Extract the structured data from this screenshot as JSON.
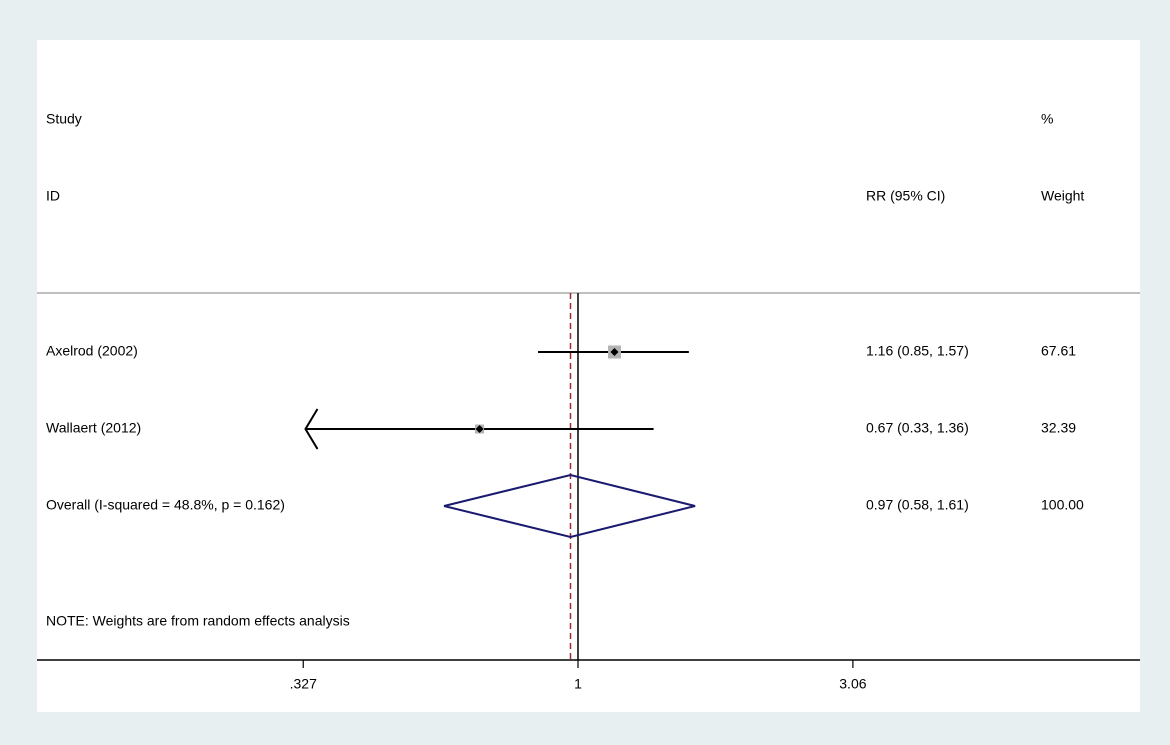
{
  "chart_data": {
    "type": "forest",
    "scale": "log",
    "headers": {
      "study": [
        "Study",
        "ID"
      ],
      "effect": "RR (95% CI)",
      "weight": [
        "%",
        "Weight"
      ]
    },
    "studies": [
      {
        "name": "Axelrod (2002)",
        "rr": 1.16,
        "lower": 0.85,
        "upper": 1.57,
        "label": "1.16 (0.85, 1.57)",
        "weight": 67.61
      },
      {
        "name": "Wallaert (2012)",
        "rr": 0.67,
        "lower": 0.33,
        "upper": 1.36,
        "label": "0.67 (0.33, 1.36)",
        "weight": 32.39,
        "arrow": "left"
      }
    ],
    "overall": {
      "name": "Overall  (I-squared = 48.8%, p = 0.162)",
      "rr": 0.97,
      "lower": 0.58,
      "upper": 1.61,
      "label": "0.97 (0.58, 1.61)",
      "weight": 100,
      "weight_label": "100.00"
    },
    "note": "NOTE: Weights are from random effects analysis",
    "xlim": [
      0.1107,
      9.84
    ],
    "xticks": [
      {
        "value": 0.327,
        "label": ".327"
      },
      1,
      3.06
    ],
    "box_color": "#b3b3b3",
    "diamond_color": "#1a1a6e",
    "overall_line_color": "#a3262e"
  }
}
